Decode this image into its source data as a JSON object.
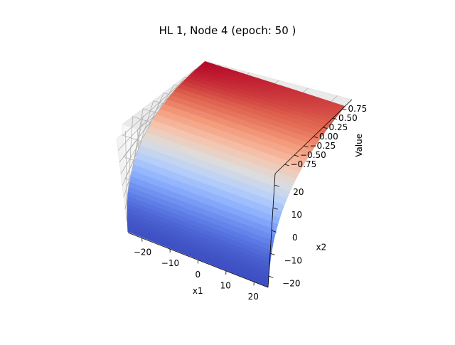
{
  "chart_data": {
    "type": "surface",
    "title": "HL 1, Node 4 (epoch: 50 )",
    "xlabel": "x1",
    "ylabel": "x2",
    "zlabel": "Value",
    "xlim": [
      -25,
      25
    ],
    "ylim": [
      -25,
      25
    ],
    "zlim": [
      -1,
      1
    ],
    "x_ticks": [
      -20,
      -10,
      0,
      10,
      20
    ],
    "x_tick_labels": [
      "−20",
      "−10",
      "0",
      "10",
      "20"
    ],
    "y_ticks": [
      -20,
      -10,
      0,
      10,
      20
    ],
    "y_tick_labels": [
      "−20",
      "−10",
      "0",
      "10",
      "20"
    ],
    "z_ticks": [
      -0.75,
      -0.5,
      -0.25,
      0,
      0.25,
      0.5,
      0.75
    ],
    "z_tick_labels": [
      "−0.75",
      "−0.50",
      "−0.25",
      "0.00",
      "0.25",
      "0.50",
      "0.75"
    ],
    "surface": {
      "x_grid": [
        -25,
        -20,
        -15,
        -10,
        -5,
        0,
        5,
        10,
        15,
        20,
        25
      ],
      "y_grid": [
        -25,
        -20,
        -15,
        -10,
        -5,
        0,
        5,
        10,
        15,
        20,
        25
      ],
      "z_corners": {
        "x1_-25_x2_-25": -0.98,
        "x1_-25_x2_25": 0.99,
        "x1_25_x2_-25": -0.99,
        "x1_25_x2_25": 0.82
      }
    },
    "colormap": "coolwarm",
    "grid": true
  }
}
